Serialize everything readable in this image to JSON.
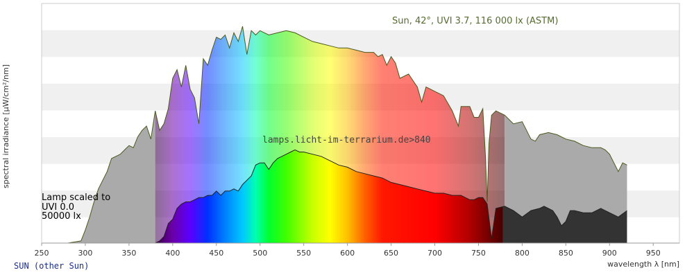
{
  "chart_data": {
    "type": "area",
    "title": "Sun, 42°, UVI 3.7, 116 000 lx (ASTM)",
    "xlabel": "wavelength λ [nm]",
    "ylabel": "spectral irradiance [µW/cm²/nm]",
    "xlim": [
      250,
      980
    ],
    "ylim": [
      0,
      1
    ],
    "xticks": [
      "250",
      "300",
      "350",
      "400",
      "450",
      "500",
      "550",
      "600",
      "650",
      "700",
      "750",
      "800",
      "850",
      "900",
      "950"
    ],
    "grid": true,
    "series": [
      {
        "name": "Sun, 42°, UVI 3.7, 116 000 lx (ASTM)",
        "x": [
          280,
          295,
          300,
          305,
          310,
          315,
          320,
          325,
          330,
          335,
          340,
          345,
          350,
          355,
          360,
          365,
          370,
          375,
          380,
          385,
          390,
          395,
          400,
          405,
          410,
          415,
          420,
          425,
          430,
          435,
          440,
          445,
          450,
          455,
          460,
          465,
          470,
          475,
          480,
          485,
          490,
          495,
          500,
          510,
          520,
          530,
          540,
          550,
          560,
          570,
          580,
          590,
          600,
          610,
          620,
          630,
          635,
          640,
          645,
          650,
          655,
          660,
          670,
          680,
          685,
          690,
          700,
          710,
          720,
          727,
          730,
          740,
          745,
          750,
          755,
          758,
          760,
          762,
          765,
          770,
          780,
          790,
          800,
          810,
          815,
          820,
          830,
          840,
          850,
          860,
          870,
          880,
          890,
          895,
          900,
          905,
          910,
          915,
          920
        ],
        "y": [
          0.0,
          0.01,
          0.06,
          0.12,
          0.19,
          0.25,
          0.29,
          0.33,
          0.39,
          0.4,
          0.41,
          0.43,
          0.45,
          0.44,
          0.49,
          0.52,
          0.54,
          0.48,
          0.61,
          0.52,
          0.55,
          0.62,
          0.76,
          0.8,
          0.72,
          0.82,
          0.71,
          0.67,
          0.55,
          0.85,
          0.82,
          0.89,
          0.95,
          0.94,
          0.96,
          0.9,
          0.97,
          0.93,
          1.0,
          0.87,
          0.98,
          0.96,
          0.98,
          0.96,
          0.97,
          0.98,
          0.97,
          0.95,
          0.93,
          0.92,
          0.91,
          0.9,
          0.9,
          0.89,
          0.88,
          0.88,
          0.86,
          0.87,
          0.82,
          0.86,
          0.83,
          0.76,
          0.78,
          0.72,
          0.65,
          0.72,
          0.7,
          0.68,
          0.61,
          0.54,
          0.63,
          0.63,
          0.58,
          0.58,
          0.62,
          0.4,
          0.19,
          0.46,
          0.59,
          0.61,
          0.59,
          0.55,
          0.56,
          0.48,
          0.47,
          0.5,
          0.51,
          0.5,
          0.48,
          0.47,
          0.45,
          0.44,
          0.44,
          0.43,
          0.41,
          0.37,
          0.33,
          0.37,
          0.36
        ]
      },
      {
        "name": "lamps.licht-im-terrarium.de>840",
        "x": [
          360,
          365,
          370,
          375,
          380,
          385,
          390,
          395,
          400,
          405,
          410,
          415,
          420,
          425,
          430,
          435,
          440,
          445,
          450,
          455,
          460,
          465,
          470,
          475,
          480,
          485,
          490,
          495,
          500,
          505,
          510,
          515,
          520,
          525,
          530,
          535,
          540,
          545,
          550,
          560,
          570,
          580,
          590,
          600,
          610,
          620,
          630,
          640,
          650,
          660,
          670,
          680,
          690,
          700,
          710,
          720,
          725,
          730,
          735,
          740,
          745,
          750,
          755,
          760,
          765,
          770,
          780,
          790,
          800,
          810,
          820,
          825,
          830,
          835,
          840,
          845,
          850,
          855,
          860,
          870,
          880,
          890,
          900,
          910,
          920
        ],
        "y": [
          0.0,
          0.0,
          0.0,
          0.0,
          0.0,
          0.01,
          0.03,
          0.09,
          0.11,
          0.16,
          0.18,
          0.19,
          0.19,
          0.2,
          0.21,
          0.21,
          0.22,
          0.22,
          0.24,
          0.22,
          0.24,
          0.24,
          0.25,
          0.24,
          0.27,
          0.29,
          0.31,
          0.36,
          0.37,
          0.37,
          0.34,
          0.37,
          0.39,
          0.4,
          0.41,
          0.42,
          0.43,
          0.42,
          0.42,
          0.41,
          0.4,
          0.38,
          0.36,
          0.35,
          0.33,
          0.32,
          0.31,
          0.3,
          0.28,
          0.27,
          0.26,
          0.25,
          0.24,
          0.23,
          0.23,
          0.22,
          0.22,
          0.22,
          0.21,
          0.2,
          0.2,
          0.21,
          0.21,
          0.18,
          0.02,
          0.16,
          0.17,
          0.15,
          0.12,
          0.15,
          0.16,
          0.17,
          0.16,
          0.15,
          0.12,
          0.08,
          0.1,
          0.15,
          0.15,
          0.14,
          0.14,
          0.16,
          0.14,
          0.12,
          0.15
        ]
      }
    ]
  },
  "lamp_scale": {
    "line1": "Lamp scaled to",
    "line2": "UVI 0.0",
    "line3": "50000 lx"
  },
  "footer": {
    "link": "SUN (other Sun)"
  },
  "colors": {
    "grid_band": "#f0f0f0",
    "axis": "#bbbbbb",
    "sun_outline": "#4a5a1c",
    "uv_gray": "#aaaaaa",
    "ir_gray": "#aaaaaa",
    "lamp_uv": "#222222",
    "lamp_ir": "#333333"
  }
}
